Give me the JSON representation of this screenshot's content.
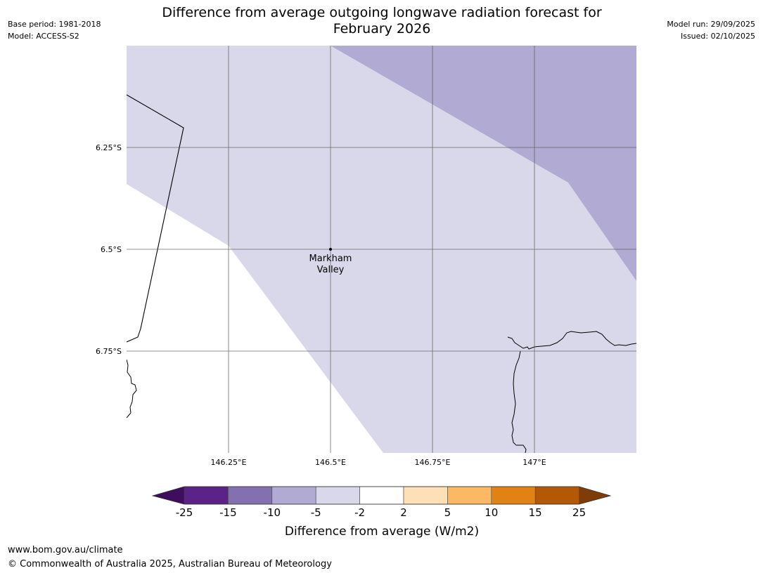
{
  "header": {
    "title_line1": "Difference from average outgoing longwave radiation forecast for",
    "title_line2": "February 2026",
    "base_period": "Base period: 1981-2018",
    "model": "Model: ACCESS-S2",
    "model_run": "Model run: 29/09/2025",
    "issued": "Issued: 02/10/2025"
  },
  "map": {
    "lat_labels": [
      "6.25°S",
      "6.5°S",
      "6.75°S"
    ],
    "lon_labels": [
      "146.25°E",
      "146.5°E",
      "146.75°E",
      "147°E"
    ],
    "location": {
      "line1": "Markham",
      "line2": "Valley",
      "marker_icon": "location-dot-icon"
    }
  },
  "colorbar": {
    "label": "Difference from average (W/m2)",
    "tick_labels": [
      "-25",
      "-15",
      "-10",
      "-5",
      "-2",
      "2",
      "5",
      "10",
      "15",
      "25"
    ],
    "colors": [
      "#3f0d5e",
      "#5b2387",
      "#8270af",
      "#b1aad2",
      "#d8d8ea",
      "#ffffff",
      "#fee0b6",
      "#fdb863",
      "#e08214",
      "#b35806",
      "#7f3b08"
    ]
  },
  "footer": {
    "website": "www.bom.gov.au/climate",
    "copyright": "© Commonwealth of Australia 2025, Australian Bureau of Meteorology"
  },
  "style": {
    "light_purple": "#d8d8ea",
    "medium_purple": "#b1aad2",
    "grid": "#555555"
  }
}
